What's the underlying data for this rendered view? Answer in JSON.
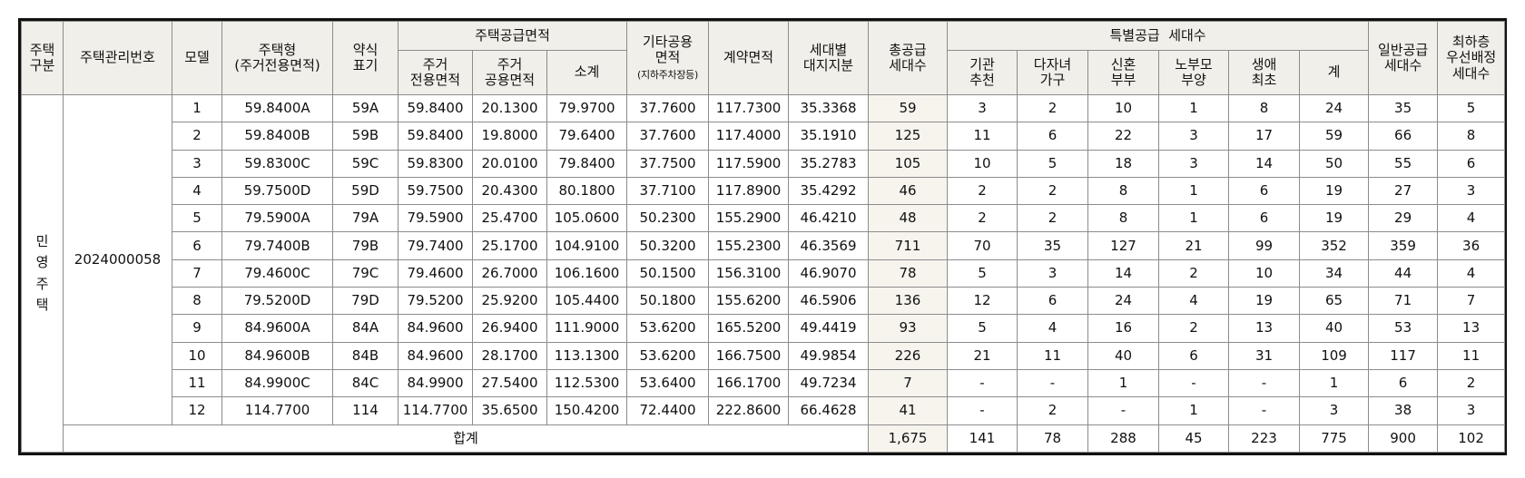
{
  "headers": {
    "housing_type": "주택\n구분",
    "management_no": "주택관리번호",
    "model": "모델",
    "housing_size": "주택형\n(주거전용면적)",
    "abbrev": "약식\n표기",
    "supply_area": "주택공급면적",
    "residential_exclusive": "주거\n전용면적",
    "residential_common": "주거\n공용면적",
    "subtotal": "소계",
    "other_common": "기타공용\n면적",
    "other_common_note": "(지하주차장등)",
    "contract_area": "계약면적",
    "land_share": "세대별\n대지지분",
    "total_supply": "총공급\n세대수",
    "special_supply": "특별공급  세대수",
    "institution": "기관\n추천",
    "multi_child": "다자녀\n가구",
    "newlywed": "신혼\n부부",
    "elderly_parent": "노부모\n부양",
    "first_life": "생애\n최초",
    "special_total": "계",
    "general_supply": "일반공급\n세대수",
    "lowest_floor": "최하층\n우선배정\n세대수"
  },
  "housing_type_value": "민영주택",
  "management_no_value": "2024000058",
  "rows": [
    {
      "model": "1",
      "size": "59.8400A",
      "abbr": "59A",
      "excl": "59.8400",
      "common": "20.1300",
      "sub": "79.9700",
      "other": "37.7600",
      "contract": "117.7300",
      "land": "35.3368",
      "total": "59",
      "inst": "3",
      "multi": "2",
      "newly": "10",
      "elder": "1",
      "first": "8",
      "sp_total": "24",
      "general": "35",
      "lowest": "5"
    },
    {
      "model": "2",
      "size": "59.8400B",
      "abbr": "59B",
      "excl": "59.8400",
      "common": "19.8000",
      "sub": "79.6400",
      "other": "37.7600",
      "contract": "117.4000",
      "land": "35.1910",
      "total": "125",
      "inst": "11",
      "multi": "6",
      "newly": "22",
      "elder": "3",
      "first": "17",
      "sp_total": "59",
      "general": "66",
      "lowest": "8"
    },
    {
      "model": "3",
      "size": "59.8300C",
      "abbr": "59C",
      "excl": "59.8300",
      "common": "20.0100",
      "sub": "79.8400",
      "other": "37.7500",
      "contract": "117.5900",
      "land": "35.2783",
      "total": "105",
      "inst": "10",
      "multi": "5",
      "newly": "18",
      "elder": "3",
      "first": "14",
      "sp_total": "50",
      "general": "55",
      "lowest": "6"
    },
    {
      "model": "4",
      "size": "59.7500D",
      "abbr": "59D",
      "excl": "59.7500",
      "common": "20.4300",
      "sub": "80.1800",
      "other": "37.7100",
      "contract": "117.8900",
      "land": "35.4292",
      "total": "46",
      "inst": "2",
      "multi": "2",
      "newly": "8",
      "elder": "1",
      "first": "6",
      "sp_total": "19",
      "general": "27",
      "lowest": "3"
    },
    {
      "model": "5",
      "size": "79.5900A",
      "abbr": "79A",
      "excl": "79.5900",
      "common": "25.4700",
      "sub": "105.0600",
      "other": "50.2300",
      "contract": "155.2900",
      "land": "46.4210",
      "total": "48",
      "inst": "2",
      "multi": "2",
      "newly": "8",
      "elder": "1",
      "first": "6",
      "sp_total": "19",
      "general": "29",
      "lowest": "4"
    },
    {
      "model": "6",
      "size": "79.7400B",
      "abbr": "79B",
      "excl": "79.7400",
      "common": "25.1700",
      "sub": "104.9100",
      "other": "50.3200",
      "contract": "155.2300",
      "land": "46.3569",
      "total": "711",
      "inst": "70",
      "multi": "35",
      "newly": "127",
      "elder": "21",
      "first": "99",
      "sp_total": "352",
      "general": "359",
      "lowest": "36"
    },
    {
      "model": "7",
      "size": "79.4600C",
      "abbr": "79C",
      "excl": "79.4600",
      "common": "26.7000",
      "sub": "106.1600",
      "other": "50.1500",
      "contract": "156.3100",
      "land": "46.9070",
      "total": "78",
      "inst": "5",
      "multi": "3",
      "newly": "14",
      "elder": "2",
      "first": "10",
      "sp_total": "34",
      "general": "44",
      "lowest": "4"
    },
    {
      "model": "8",
      "size": "79.5200D",
      "abbr": "79D",
      "excl": "79.5200",
      "common": "25.9200",
      "sub": "105.4400",
      "other": "50.1800",
      "contract": "155.6200",
      "land": "46.5906",
      "total": "136",
      "inst": "12",
      "multi": "6",
      "newly": "24",
      "elder": "4",
      "first": "19",
      "sp_total": "65",
      "general": "71",
      "lowest": "7"
    },
    {
      "model": "9",
      "size": "84.9600A",
      "abbr": "84A",
      "excl": "84.9600",
      "common": "26.9400",
      "sub": "111.9000",
      "other": "53.6200",
      "contract": "165.5200",
      "land": "49.4419",
      "total": "93",
      "inst": "5",
      "multi": "4",
      "newly": "16",
      "elder": "2",
      "first": "13",
      "sp_total": "40",
      "general": "53",
      "lowest": "13"
    },
    {
      "model": "10",
      "size": "84.9600B",
      "abbr": "84B",
      "excl": "84.9600",
      "common": "28.1700",
      "sub": "113.1300",
      "other": "53.6200",
      "contract": "166.7500",
      "land": "49.9854",
      "total": "226",
      "inst": "21",
      "multi": "11",
      "newly": "40",
      "elder": "6",
      "first": "31",
      "sp_total": "109",
      "general": "117",
      "lowest": "11"
    },
    {
      "model": "11",
      "size": "84.9900C",
      "abbr": "84C",
      "excl": "84.9900",
      "common": "27.5400",
      "sub": "112.5300",
      "other": "53.6400",
      "contract": "166.1700",
      "land": "49.7234",
      "total": "7",
      "inst": "-",
      "multi": "-",
      "newly": "1",
      "elder": "-",
      "first": "-",
      "sp_total": "1",
      "general": "6",
      "lowest": "2"
    },
    {
      "model": "12",
      "size": "114.7700",
      "abbr": "114",
      "excl": "114.7700",
      "common": "35.6500",
      "sub": "150.4200",
      "other": "72.4400",
      "contract": "222.8600",
      "land": "66.4628",
      "total": "41",
      "inst": "-",
      "multi": "2",
      "newly": "-",
      "elder": "1",
      "first": "-",
      "sp_total": "3",
      "general": "38",
      "lowest": "3"
    }
  ],
  "totals": {
    "label": "합계",
    "total": "1,675",
    "inst": "141",
    "multi": "78",
    "newly": "288",
    "elder": "45",
    "first": "223",
    "sp_total": "775",
    "general": "900",
    "lowest": "102"
  }
}
